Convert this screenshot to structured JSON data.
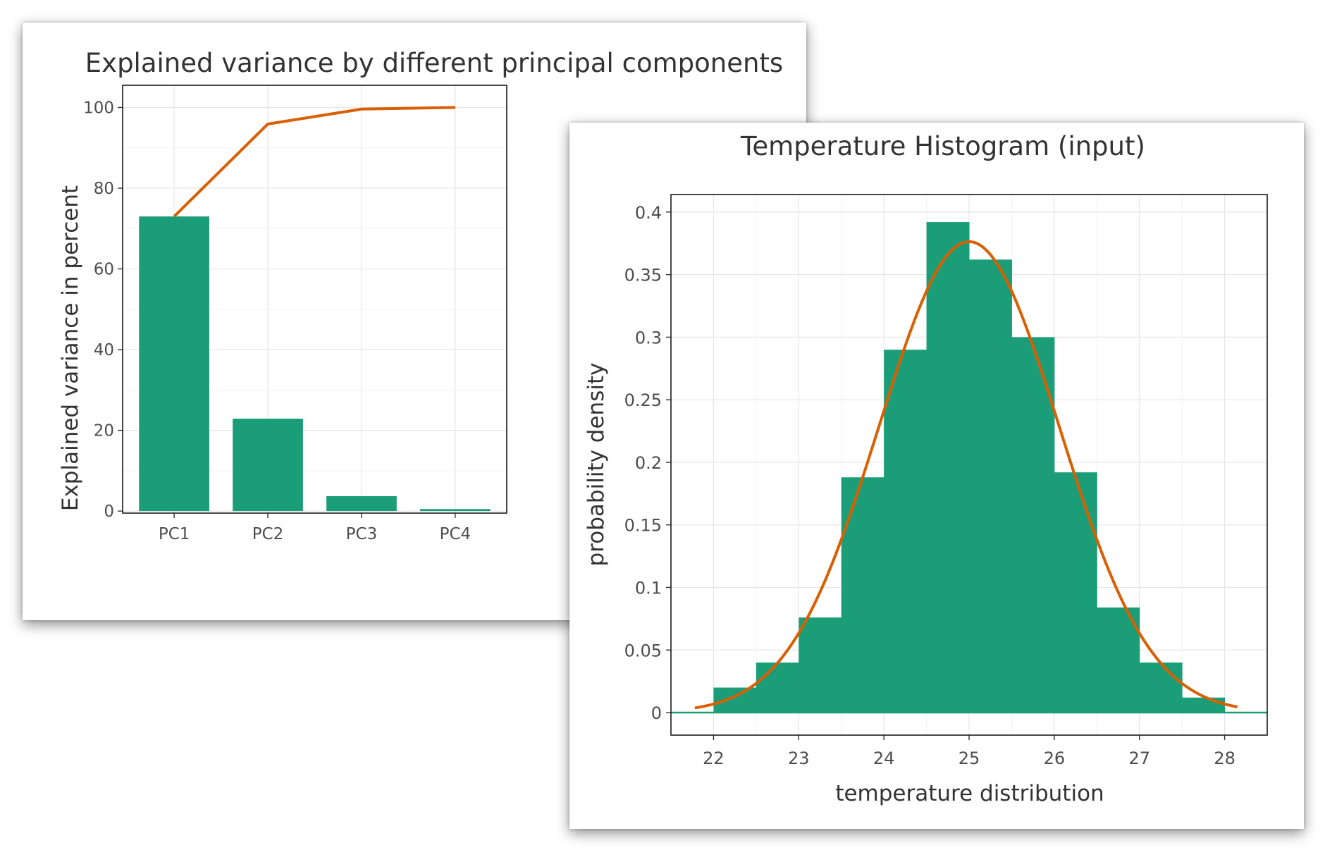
{
  "colors": {
    "bar": "#1b9e77",
    "line": "#d95f02",
    "grid": "#e6e6e6",
    "frame": "#1a1a1a",
    "text": "#333333"
  },
  "chart_data": [
    {
      "type": "bar",
      "title": "Explained variance by different principal components",
      "xlabel": "",
      "ylabel": "Explained variance in percent",
      "categories": [
        "PC1",
        "PC2",
        "PC3",
        "PC4"
      ],
      "series": [
        {
          "kind": "bar",
          "values": [
            73,
            22.9,
            3.7,
            0.5
          ]
        },
        {
          "kind": "line",
          "values": [
            73,
            95.9,
            99.6,
            100
          ]
        }
      ],
      "ylim": [
        -0.5,
        105.5
      ],
      "yticks": [
        0,
        20,
        40,
        60,
        80,
        100
      ],
      "grid": true,
      "legend": "none"
    },
    {
      "type": "bar",
      "subtype": "histogram",
      "title": "Temperature Histogram (input)",
      "xlabel": "temperature distribution",
      "ylabel": "probability density",
      "bins": [
        {
          "x0": 22.0,
          "x1": 22.5,
          "value": 0.02
        },
        {
          "x0": 22.5,
          "x1": 23.0,
          "value": 0.04
        },
        {
          "x0": 23.0,
          "x1": 23.5,
          "value": 0.076
        },
        {
          "x0": 23.5,
          "x1": 24.0,
          "value": 0.188
        },
        {
          "x0": 24.0,
          "x1": 24.5,
          "value": 0.29
        },
        {
          "x0": 24.5,
          "x1": 25.0,
          "value": 0.392
        },
        {
          "x0": 25.0,
          "x1": 25.5,
          "value": 0.362
        },
        {
          "x0": 25.5,
          "x1": 26.0,
          "value": 0.3
        },
        {
          "x0": 26.0,
          "x1": 26.5,
          "value": 0.192
        },
        {
          "x0": 26.5,
          "x1": 27.0,
          "value": 0.084
        },
        {
          "x0": 27.0,
          "x1": 27.5,
          "value": 0.04
        },
        {
          "x0": 27.5,
          "x1": 28.0,
          "value": 0.012
        }
      ],
      "density_curve": {
        "mean": 25.0,
        "sd": 1.06,
        "x_from": 21.78,
        "x_to": 28.15
      },
      "xticks": [
        22,
        23,
        24,
        25,
        26,
        27,
        28
      ],
      "yticks": [
        0,
        0.05,
        0.1,
        0.15,
        0.2,
        0.25,
        0.3,
        0.35,
        0.4
      ],
      "ytick_labels": [
        "0",
        "0.05",
        "0.1",
        "0.15",
        "0.2",
        "0.25",
        "0.3",
        "0.35",
        "0.4"
      ],
      "xlim": [
        21.5,
        28.5
      ],
      "ylim": [
        -0.018,
        0.414
      ],
      "grid": true,
      "legend": "none"
    }
  ]
}
